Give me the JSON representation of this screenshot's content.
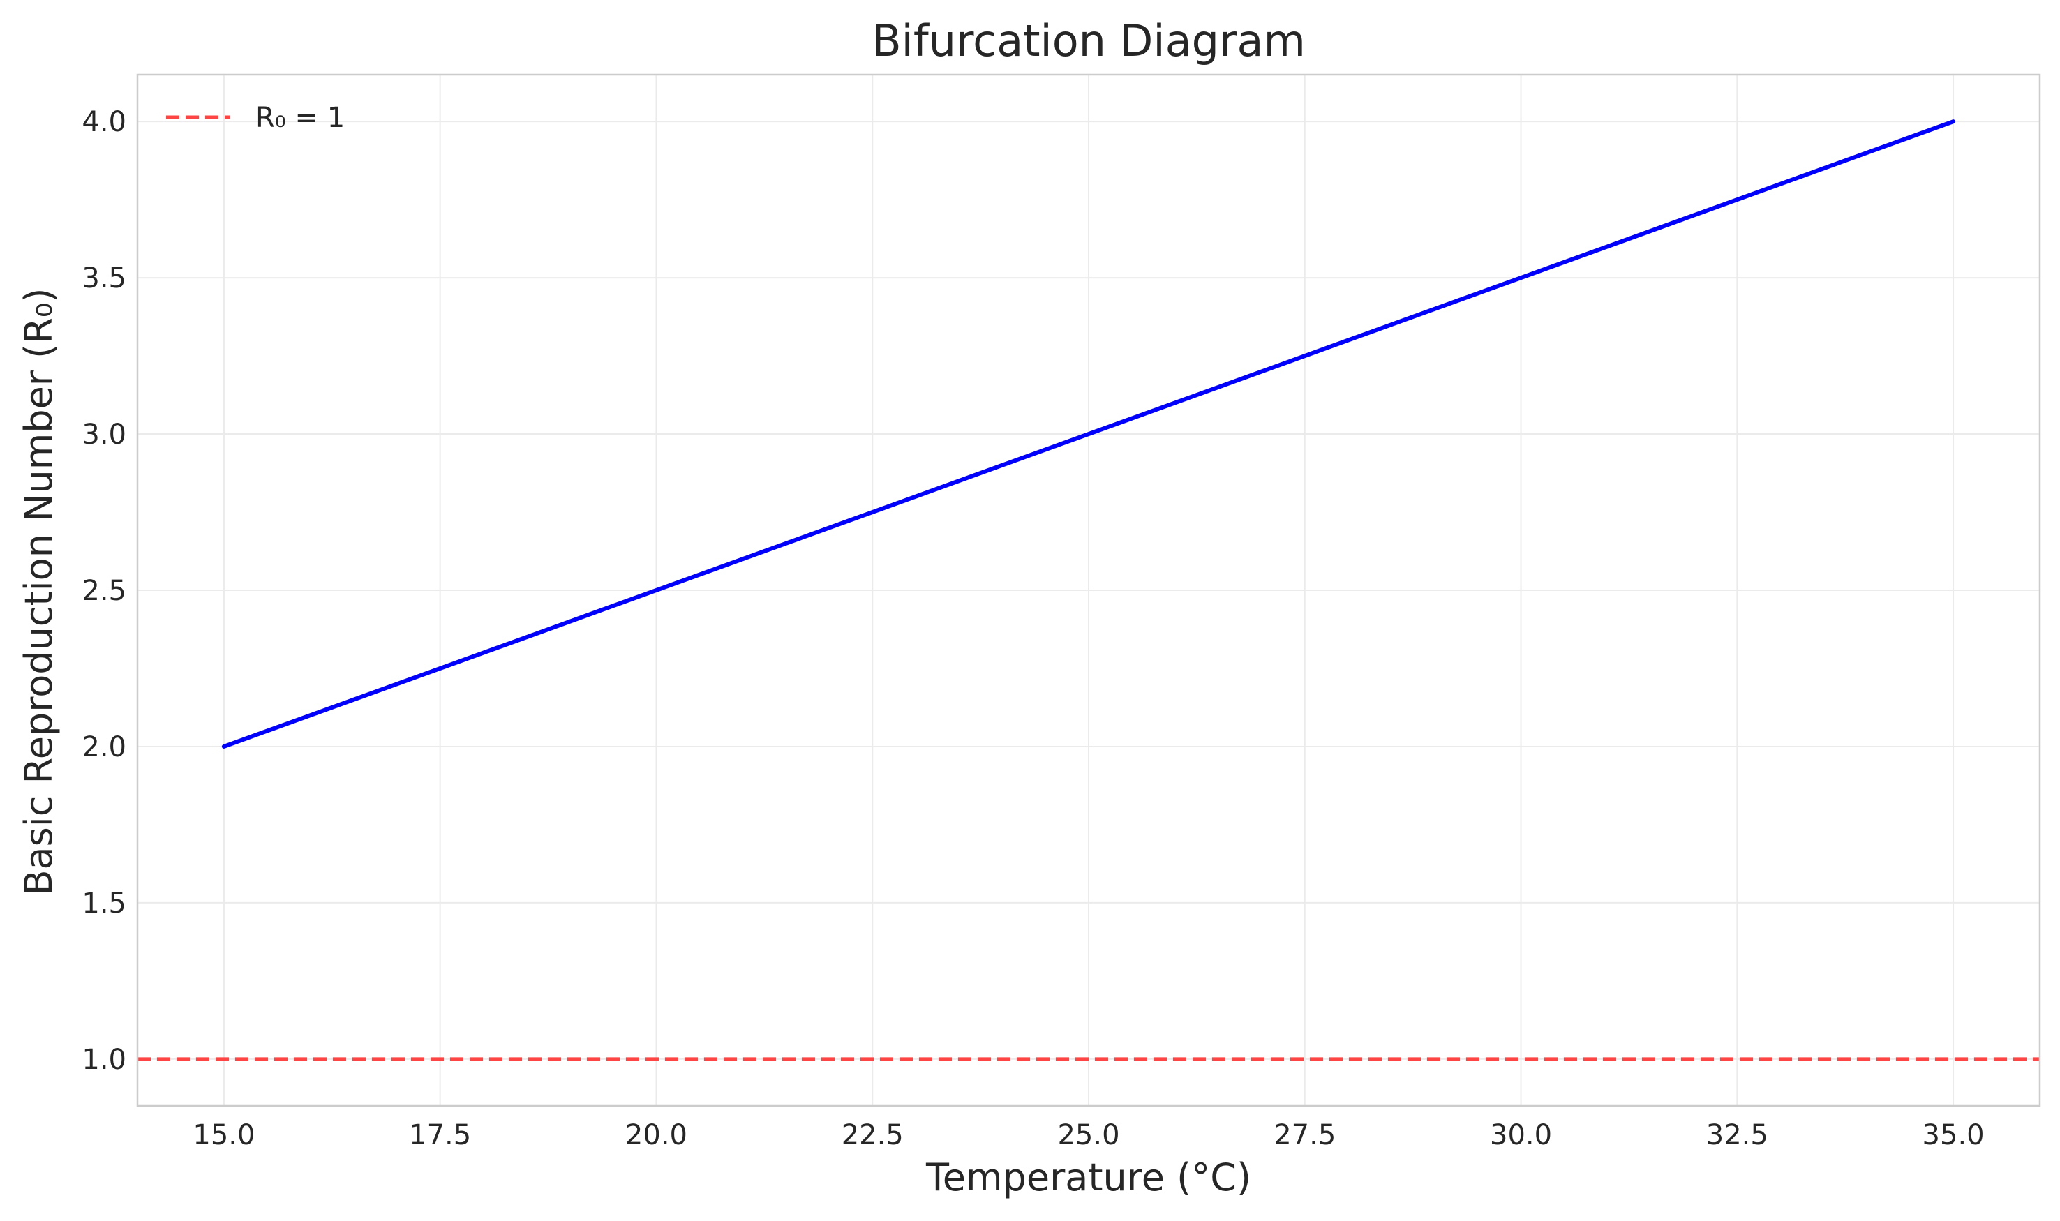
{
  "chart_data": {
    "type": "line",
    "title": "Bifurcation Diagram",
    "xlabel": "Temperature (°C)",
    "ylabel": "Basic Reproduction Number (R₀)",
    "xlim": [
      14.0,
      36.0
    ],
    "ylim": [
      0.85,
      4.15
    ],
    "xticks": [
      15.0,
      17.5,
      20.0,
      22.5,
      25.0,
      27.5,
      30.0,
      32.5,
      35.0
    ],
    "xtick_labels": [
      "15.0",
      "17.5",
      "20.0",
      "22.5",
      "25.0",
      "27.5",
      "30.0",
      "32.5",
      "35.0"
    ],
    "yticks": [
      1.0,
      1.5,
      2.0,
      2.5,
      3.0,
      3.5,
      4.0
    ],
    "ytick_labels": [
      "1.0",
      "1.5",
      "2.0",
      "2.5",
      "3.0",
      "3.5",
      "4.0"
    ],
    "grid": true,
    "legend_position": "top-left",
    "series": [
      {
        "x": [
          15.0,
          35.0
        ],
        "y": [
          2.0,
          4.0
        ],
        "color": "#0000ff",
        "style": "solid"
      }
    ],
    "reference_lines": [
      {
        "orientation": "horizontal",
        "y": 1.0,
        "name": "R₀ = 1",
        "color": "#ff4444",
        "style": "dashed"
      }
    ]
  }
}
